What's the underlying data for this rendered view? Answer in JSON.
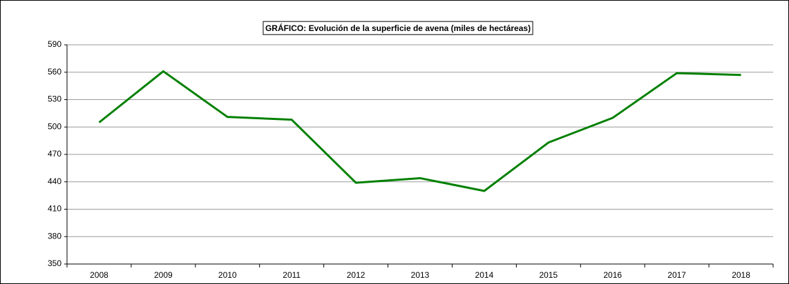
{
  "chart_data": {
    "type": "line",
    "title": "GRÁFICO: Evolución de la superficie de avena (miles de hectáreas)",
    "categories": [
      "2008",
      "2009",
      "2010",
      "2011",
      "2012",
      "2013",
      "2014",
      "2015",
      "2016",
      "2017",
      "2018"
    ],
    "values": [
      505,
      561,
      511,
      508,
      439,
      444,
      430,
      483,
      510,
      559,
      557
    ],
    "color": "#008000",
    "ylim": [
      350,
      590
    ],
    "yticks": [
      350,
      380,
      410,
      440,
      470,
      500,
      530,
      560,
      590
    ],
    "grid": true
  }
}
